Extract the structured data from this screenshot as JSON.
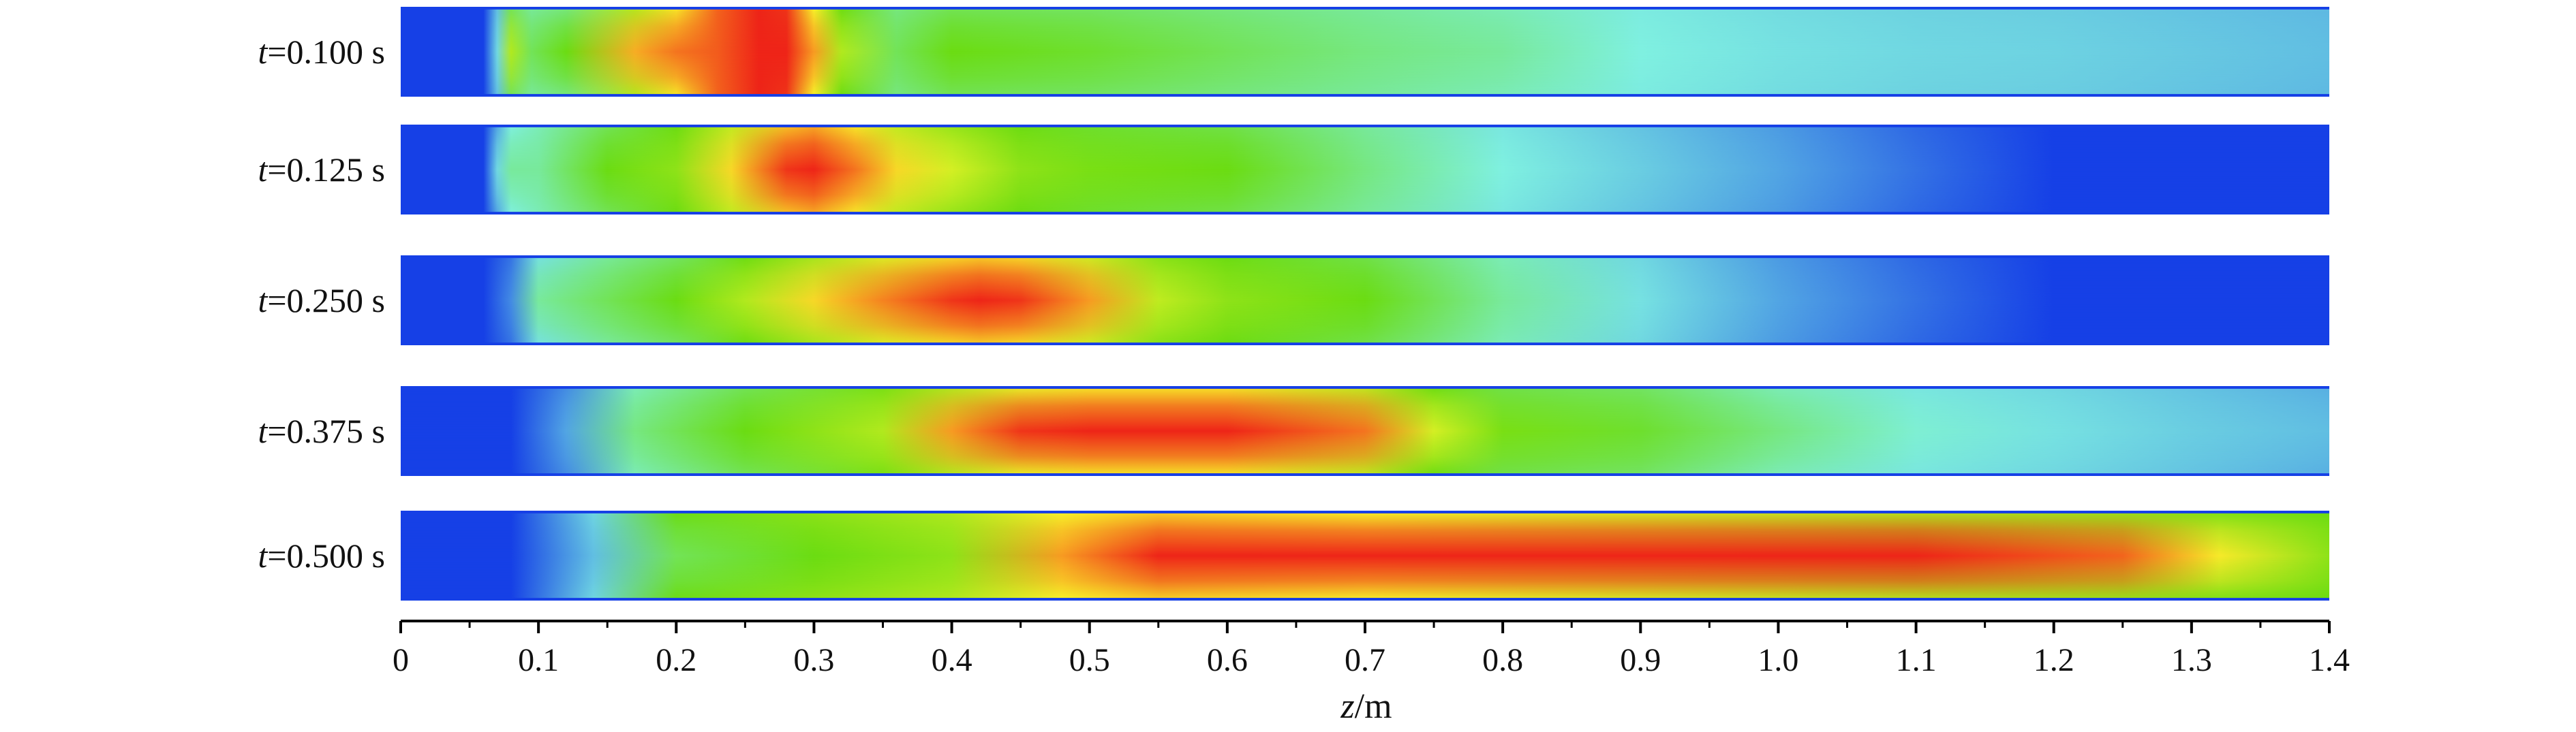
{
  "chart_data": {
    "type": "heatmap",
    "xlabel_var": "z",
    "xlabel_unit": "/m",
    "xlim": [
      0,
      1.4
    ],
    "ticks": [
      "0",
      "0.1",
      "0.2",
      "0.3",
      "0.4",
      "0.5",
      "0.6",
      "0.7",
      "0.8",
      "0.9",
      "1.0",
      "1.1",
      "1.2",
      "1.3",
      "1.4"
    ],
    "colors": {
      "low": "#1640e6",
      "cyan": "#7ff0e0",
      "green": "#6bdc12",
      "yellow": "#f7f52a",
      "orange": "#f79a22",
      "high": "#ee2418"
    },
    "rows": [
      {
        "t_var": "t",
        "t_value": "=0.100 s",
        "x_start": 0.06,
        "x_end": 1.4,
        "z": [
          0.06,
          0.07,
          0.08,
          0.095,
          0.12,
          0.17,
          0.2,
          0.23,
          0.26,
          0.28,
          0.3,
          0.32,
          0.36,
          0.4,
          0.5,
          0.6,
          0.7,
          0.8,
          0.9,
          1.0,
          1.1,
          1.2,
          1.3,
          1.4
        ],
        "core": [
          0.0,
          0.3,
          0.6,
          0.45,
          0.5,
          0.82,
          0.9,
          0.93,
          1.0,
          1.0,
          0.85,
          0.6,
          0.45,
          0.5,
          0.48,
          0.45,
          0.42,
          0.4,
          0.35,
          0.32,
          0.3,
          0.29,
          0.27,
          0.25
        ],
        "edge": [
          0.0,
          0.25,
          0.45,
          0.4,
          0.42,
          0.6,
          0.72,
          0.92,
          1.0,
          0.98,
          0.7,
          0.5,
          0.42,
          0.45,
          0.44,
          0.42,
          0.4,
          0.38,
          0.34,
          0.31,
          0.29,
          0.28,
          0.26,
          0.24
        ]
      },
      {
        "t_var": "t",
        "t_value": "=0.125 s",
        "x_start": 0.06,
        "x_end": 1.4,
        "z": [
          0.06,
          0.07,
          0.08,
          0.1,
          0.15,
          0.2,
          0.24,
          0.28,
          0.3,
          0.33,
          0.36,
          0.4,
          0.45,
          0.5,
          0.6,
          0.7,
          0.8,
          0.9,
          1.0,
          1.1,
          1.2,
          1.3,
          1.4
        ],
        "core": [
          0.0,
          0.3,
          0.4,
          0.4,
          0.5,
          0.55,
          0.75,
          0.98,
          1.0,
          0.9,
          0.75,
          0.65,
          0.55,
          0.52,
          0.5,
          0.42,
          0.35,
          0.28,
          0.2,
          0.1,
          0.0,
          0.0,
          0.0
        ],
        "edge": [
          0.0,
          0.2,
          0.35,
          0.38,
          0.45,
          0.5,
          0.62,
          0.78,
          0.82,
          0.72,
          0.62,
          0.56,
          0.5,
          0.48,
          0.46,
          0.4,
          0.33,
          0.26,
          0.18,
          0.08,
          0.0,
          0.0,
          0.0
        ]
      },
      {
        "t_var": "t",
        "t_value": "=0.250 s",
        "x_start": 0.06,
        "x_end": 1.4,
        "z": [
          0.06,
          0.08,
          0.1,
          0.15,
          0.2,
          0.25,
          0.3,
          0.35,
          0.4,
          0.42,
          0.45,
          0.5,
          0.55,
          0.6,
          0.7,
          0.8,
          0.9,
          1.0,
          1.1,
          1.2,
          1.3,
          1.4
        ],
        "core": [
          0.0,
          0.15,
          0.4,
          0.45,
          0.5,
          0.6,
          0.75,
          0.88,
          0.98,
          1.0,
          0.98,
          0.85,
          0.62,
          0.55,
          0.5,
          0.4,
          0.32,
          0.2,
          0.1,
          0.0,
          0.0,
          0.0
        ],
        "edge": [
          0.0,
          0.1,
          0.32,
          0.4,
          0.44,
          0.5,
          0.58,
          0.66,
          0.74,
          0.76,
          0.74,
          0.64,
          0.54,
          0.5,
          0.46,
          0.38,
          0.3,
          0.18,
          0.08,
          0.0,
          0.0,
          0.0
        ]
      },
      {
        "t_var": "t",
        "t_value": "=0.375 s",
        "x_start": 0.0,
        "x_end": 1.4,
        "z": [
          0.0,
          0.08,
          0.12,
          0.17,
          0.25,
          0.35,
          0.4,
          0.45,
          0.5,
          0.6,
          0.7,
          0.75,
          0.8,
          0.9,
          1.0,
          1.1,
          1.2,
          1.3,
          1.4
        ],
        "core": [
          0.0,
          0.0,
          0.2,
          0.42,
          0.5,
          0.6,
          0.85,
          0.98,
          1.0,
          1.0,
          0.9,
          0.65,
          0.52,
          0.48,
          0.42,
          0.36,
          0.32,
          0.28,
          0.25
        ],
        "edge": [
          0.0,
          0.0,
          0.15,
          0.38,
          0.45,
          0.52,
          0.6,
          0.68,
          0.72,
          0.72,
          0.62,
          0.5,
          0.46,
          0.44,
          0.38,
          0.33,
          0.3,
          0.26,
          0.22
        ]
      },
      {
        "t_var": "t",
        "t_value": "=0.500 s",
        "x_start": 0.0,
        "x_end": 1.4,
        "z": [
          0.0,
          0.08,
          0.14,
          0.2,
          0.3,
          0.4,
          0.48,
          0.55,
          0.7,
          0.9,
          1.1,
          1.25,
          1.32,
          1.4
        ],
        "core": [
          0.0,
          0.0,
          0.25,
          0.45,
          0.5,
          0.55,
          0.85,
          1.0,
          1.0,
          1.0,
          1.0,
          0.92,
          0.72,
          0.55
        ],
        "edge": [
          0.0,
          0.0,
          0.3,
          0.5,
          0.55,
          0.6,
          0.7,
          0.75,
          0.7,
          0.65,
          0.6,
          0.56,
          0.52,
          0.5
        ]
      }
    ]
  }
}
